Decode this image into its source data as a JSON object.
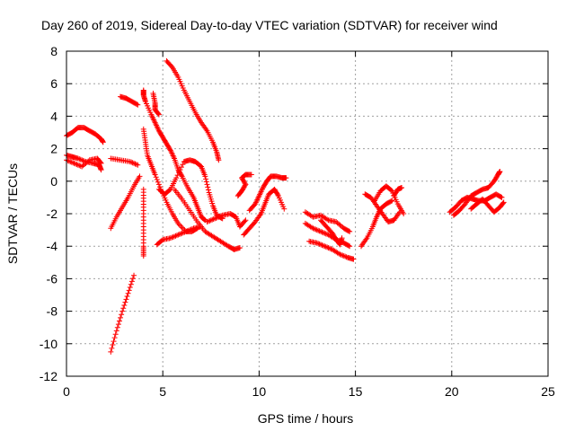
{
  "chart_data": {
    "type": "scatter",
    "title": "Day 260 of 2019, Sidereal Day-to-day VTEC variation (SDTVAR) for receiver wind",
    "xlabel": "GPS time / hours",
    "ylabel": "SDTVAR / TECUs",
    "xlim": [
      0,
      25
    ],
    "ylim": [
      -12,
      8
    ],
    "xticks": [
      0,
      5,
      10,
      15,
      20,
      25
    ],
    "yticks": [
      -12,
      -10,
      -8,
      -6,
      -4,
      -2,
      0,
      2,
      4,
      6,
      8
    ],
    "grid": true,
    "marker": "+",
    "color": "#ff0000",
    "series_segments": [
      {
        "name": "arc-01",
        "points": [
          [
            0.0,
            2.8
          ],
          [
            0.3,
            3.0
          ],
          [
            0.6,
            3.3
          ],
          [
            0.9,
            3.3
          ],
          [
            1.2,
            3.1
          ],
          [
            1.5,
            2.9
          ],
          [
            1.8,
            2.6
          ],
          [
            1.9,
            2.4
          ]
        ]
      },
      {
        "name": "arc-02",
        "points": [
          [
            0.0,
            1.6
          ],
          [
            0.3,
            1.5
          ],
          [
            0.6,
            1.4
          ],
          [
            1.0,
            1.2
          ],
          [
            1.4,
            1.1
          ],
          [
            1.7,
            1.0
          ],
          [
            1.8,
            0.7
          ]
        ]
      },
      {
        "name": "arc-03",
        "points": [
          [
            0.0,
            1.3
          ],
          [
            0.4,
            1.1
          ],
          [
            0.8,
            0.9
          ],
          [
            1.2,
            1.3
          ],
          [
            1.6,
            1.4
          ],
          [
            1.8,
            1.1
          ]
        ]
      },
      {
        "name": "arc-04",
        "points": [
          [
            2.3,
            -10.5
          ],
          [
            2.6,
            -9.2
          ],
          [
            2.9,
            -8.0
          ],
          [
            3.2,
            -6.9
          ],
          [
            3.5,
            -5.8
          ]
        ]
      },
      {
        "name": "arc-05",
        "points": [
          [
            2.3,
            -2.9
          ],
          [
            2.6,
            -2.2
          ],
          [
            2.9,
            -1.6
          ],
          [
            3.2,
            -1.0
          ],
          [
            3.5,
            -0.3
          ],
          [
            3.8,
            0.3
          ]
        ]
      },
      {
        "name": "arc-06",
        "points": [
          [
            2.3,
            1.4
          ],
          [
            2.8,
            1.3
          ],
          [
            3.3,
            1.2
          ],
          [
            3.7,
            1.0
          ]
        ]
      },
      {
        "name": "arc-07",
        "points": [
          [
            2.8,
            5.2
          ],
          [
            3.1,
            5.1
          ],
          [
            3.4,
            4.9
          ],
          [
            3.7,
            4.7
          ]
        ]
      },
      {
        "name": "arc-08",
        "points": [
          [
            4.0,
            5.6
          ],
          [
            4.0,
            5.3
          ],
          [
            4.1,
            4.9
          ],
          [
            4.4,
            4.1
          ],
          [
            4.6,
            3.6
          ],
          [
            4.8,
            3.1
          ],
          [
            5.0,
            2.7
          ],
          [
            5.2,
            2.3
          ],
          [
            5.4,
            1.9
          ],
          [
            5.6,
            1.4
          ],
          [
            5.8,
            0.7
          ],
          [
            6.0,
            0.3
          ],
          [
            6.3,
            -0.4
          ],
          [
            6.6,
            -1.0
          ],
          [
            6.8,
            -1.6
          ],
          [
            7.0,
            -2.2
          ],
          [
            7.2,
            -2.4
          ]
        ]
      },
      {
        "name": "arc-09",
        "points": [
          [
            4.0,
            3.2
          ],
          [
            4.1,
            2.4
          ],
          [
            4.2,
            1.6
          ],
          [
            4.4,
            1.0
          ],
          [
            4.6,
            0.4
          ],
          [
            4.9,
            -0.5
          ],
          [
            5.2,
            -1.3
          ],
          [
            5.5,
            -2.0
          ],
          [
            5.8,
            -2.6
          ],
          [
            6.2,
            -3.1
          ],
          [
            6.5,
            -3.1
          ],
          [
            6.8,
            -2.9
          ]
        ]
      },
      {
        "name": "arc-10",
        "points": [
          [
            4.0,
            -0.5
          ],
          [
            4.0,
            -1.6
          ],
          [
            4.0,
            -2.8
          ],
          [
            4.0,
            -4.0
          ],
          [
            4.0,
            -4.6
          ]
        ]
      },
      {
        "name": "arc-11",
        "points": [
          [
            4.5,
            5.4
          ],
          [
            4.6,
            4.8
          ],
          [
            4.6,
            4.4
          ],
          [
            4.8,
            4.1
          ]
        ]
      },
      {
        "name": "arc-12",
        "points": [
          [
            5.2,
            7.4
          ],
          [
            5.5,
            7.0
          ],
          [
            5.8,
            6.4
          ],
          [
            6.1,
            5.6
          ],
          [
            6.4,
            4.9
          ],
          [
            6.7,
            4.2
          ],
          [
            7.0,
            3.6
          ],
          [
            7.3,
            3.1
          ],
          [
            7.6,
            2.4
          ],
          [
            7.8,
            1.8
          ],
          [
            7.9,
            1.3
          ]
        ]
      },
      {
        "name": "arc-13",
        "points": [
          [
            4.8,
            -0.5
          ],
          [
            5.1,
            -0.8
          ],
          [
            5.4,
            -0.5
          ],
          [
            5.7,
            0.2
          ],
          [
            6.1,
            1.2
          ],
          [
            6.4,
            1.3
          ],
          [
            6.7,
            1.2
          ],
          [
            7.0,
            0.9
          ],
          [
            7.2,
            0.3
          ],
          [
            7.4,
            -0.7
          ],
          [
            7.6,
            -1.5
          ],
          [
            7.8,
            -2.1
          ],
          [
            8.1,
            -2.3
          ]
        ]
      },
      {
        "name": "arc-14",
        "points": [
          [
            4.7,
            -3.9
          ],
          [
            5.0,
            -3.6
          ],
          [
            5.4,
            -3.5
          ],
          [
            5.8,
            -3.3
          ],
          [
            6.2,
            -3.1
          ],
          [
            6.6,
            -2.9
          ],
          [
            7.0,
            -2.8
          ]
        ]
      },
      {
        "name": "arc-15",
        "points": [
          [
            5.6,
            -0.5
          ],
          [
            6.0,
            -1.1
          ],
          [
            6.4,
            -1.8
          ],
          [
            6.8,
            -2.5
          ],
          [
            7.2,
            -3.1
          ],
          [
            7.6,
            -3.4
          ],
          [
            8.0,
            -3.7
          ],
          [
            8.4,
            -4.0
          ],
          [
            8.7,
            -4.2
          ],
          [
            9.0,
            -4.1
          ]
        ]
      },
      {
        "name": "arc-16",
        "points": [
          [
            7.3,
            -2.5
          ],
          [
            7.7,
            -2.3
          ],
          [
            8.1,
            -2.1
          ],
          [
            8.5,
            -2.0
          ],
          [
            8.8,
            -2.2
          ],
          [
            9.0,
            -2.8
          ],
          [
            9.3,
            -2.4
          ]
        ]
      },
      {
        "name": "arc-17",
        "points": [
          [
            8.9,
            -0.9
          ],
          [
            9.1,
            -0.6
          ],
          [
            9.3,
            -0.2
          ],
          [
            9.1,
            0.2
          ],
          [
            9.3,
            0.4
          ],
          [
            9.6,
            0.4
          ]
        ]
      },
      {
        "name": "arc-18",
        "points": [
          [
            9.2,
            -3.3
          ],
          [
            9.5,
            -2.9
          ],
          [
            9.8,
            -2.5
          ],
          [
            10.1,
            -2.0
          ],
          [
            10.3,
            -1.4
          ],
          [
            10.5,
            -0.8
          ],
          [
            10.8,
            -0.5
          ],
          [
            11.0,
            -0.9
          ],
          [
            11.3,
            -1.7
          ]
        ]
      },
      {
        "name": "arc-19",
        "points": [
          [
            9.5,
            -1.8
          ],
          [
            9.8,
            -1.4
          ],
          [
            10.0,
            -0.9
          ],
          [
            10.2,
            -0.4
          ],
          [
            10.4,
            0.0
          ],
          [
            10.6,
            0.3
          ],
          [
            10.9,
            0.3
          ],
          [
            11.2,
            0.2
          ],
          [
            11.4,
            0.2
          ]
        ]
      },
      {
        "name": "arc-20",
        "points": [
          [
            12.4,
            -1.9
          ],
          [
            12.8,
            -2.2
          ],
          [
            13.2,
            -2.1
          ],
          [
            13.6,
            -2.4
          ],
          [
            14.0,
            -2.5
          ],
          [
            14.4,
            -2.9
          ],
          [
            14.7,
            -3.1
          ]
        ]
      },
      {
        "name": "arc-21",
        "points": [
          [
            12.4,
            -2.6
          ],
          [
            12.8,
            -2.9
          ],
          [
            13.2,
            -3.1
          ],
          [
            13.6,
            -3.3
          ],
          [
            14.0,
            -3.6
          ],
          [
            14.4,
            -3.8
          ],
          [
            14.7,
            -4.0
          ]
        ]
      },
      {
        "name": "arc-22",
        "points": [
          [
            12.6,
            -3.7
          ],
          [
            13.0,
            -3.8
          ],
          [
            13.4,
            -4.0
          ],
          [
            13.8,
            -4.2
          ],
          [
            14.2,
            -4.5
          ],
          [
            14.6,
            -4.7
          ],
          [
            14.9,
            -4.8
          ]
        ]
      },
      {
        "name": "arc-23",
        "points": [
          [
            13.2,
            -2.4
          ],
          [
            13.5,
            -2.8
          ],
          [
            13.8,
            -3.2
          ],
          [
            14.0,
            -3.6
          ],
          [
            14.2,
            -3.9
          ],
          [
            14.3,
            -3.5
          ]
        ]
      },
      {
        "name": "arc-24",
        "points": [
          [
            15.3,
            -4.0
          ],
          [
            15.6,
            -3.5
          ],
          [
            15.9,
            -2.8
          ],
          [
            16.1,
            -2.2
          ],
          [
            16.3,
            -1.7
          ],
          [
            16.6,
            -1.4
          ],
          [
            16.9,
            -1.2
          ]
        ]
      },
      {
        "name": "arc-25",
        "points": [
          [
            16.0,
            -1.2
          ],
          [
            16.3,
            -0.6
          ],
          [
            16.6,
            -0.3
          ],
          [
            16.9,
            -0.6
          ],
          [
            17.2,
            -1.4
          ],
          [
            17.5,
            -2.0
          ]
        ]
      },
      {
        "name": "arc-26",
        "points": [
          [
            15.5,
            -0.8
          ],
          [
            15.8,
            -1.0
          ],
          [
            16.1,
            -1.5
          ],
          [
            16.4,
            -2.0
          ],
          [
            16.7,
            -2.5
          ],
          [
            17.0,
            -2.4
          ],
          [
            17.3,
            -1.9
          ]
        ]
      },
      {
        "name": "arc-27",
        "points": [
          [
            17.0,
            -0.9
          ],
          [
            17.2,
            -0.5
          ],
          [
            17.4,
            -0.4
          ]
        ]
      },
      {
        "name": "arc-28",
        "points": [
          [
            19.9,
            -1.9
          ],
          [
            20.2,
            -1.6
          ],
          [
            20.5,
            -1.2
          ],
          [
            20.8,
            -1.0
          ],
          [
            21.1,
            -1.1
          ],
          [
            21.4,
            -1.2
          ],
          [
            21.7,
            -1.2
          ],
          [
            22.0,
            -1.0
          ],
          [
            22.3,
            -0.8
          ],
          [
            22.6,
            -1.0
          ]
        ]
      },
      {
        "name": "arc-29",
        "points": [
          [
            20.1,
            -2.1
          ],
          [
            20.4,
            -1.8
          ],
          [
            20.7,
            -1.4
          ],
          [
            21.0,
            -0.9
          ],
          [
            21.3,
            -0.7
          ],
          [
            21.6,
            -0.5
          ],
          [
            21.9,
            -0.4
          ],
          [
            22.2,
            0.0
          ],
          [
            22.4,
            0.4
          ],
          [
            22.5,
            0.6
          ]
        ]
      },
      {
        "name": "arc-30",
        "points": [
          [
            21.0,
            -1.7
          ],
          [
            21.3,
            -1.4
          ],
          [
            21.6,
            -1.1
          ],
          [
            21.9,
            -1.5
          ],
          [
            22.2,
            -1.9
          ],
          [
            22.5,
            -1.6
          ],
          [
            22.7,
            -1.3
          ]
        ]
      }
    ]
  }
}
